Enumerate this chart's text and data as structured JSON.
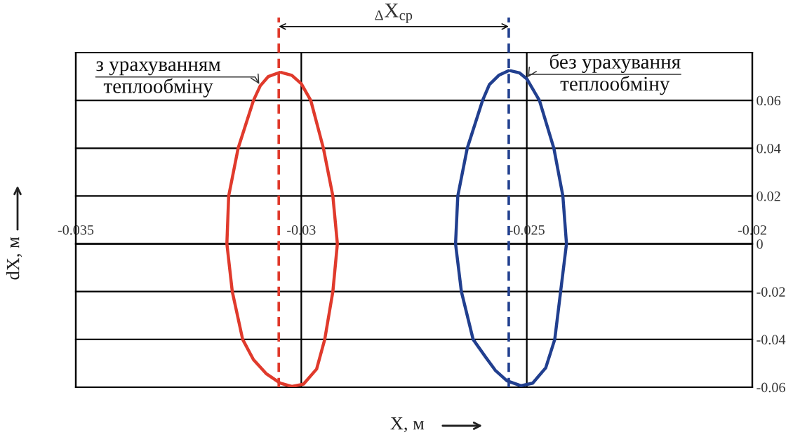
{
  "chart_data": {
    "type": "line",
    "xlabel": "X, м",
    "ylabel": "dX, м",
    "xlim": [
      -0.035,
      -0.02
    ],
    "xticks": [
      -0.035,
      -0.03,
      -0.025,
      -0.02
    ],
    "ylim": [
      -0.06,
      0.08
    ],
    "yticks": [
      -0.06,
      -0.04,
      -0.02,
      0,
      0.02,
      0.04,
      0.06
    ],
    "grid": true,
    "line_style": "solid",
    "series": [
      {
        "name": "з урахуванням\nтеплообміну",
        "color": "#e03a2c",
        "x": [
          -0.03044,
          -0.03021,
          -0.03,
          -0.02979,
          -0.02951,
          -0.0293,
          -0.0292,
          -0.0293,
          -0.02948,
          -0.02966,
          -0.02995,
          -0.03021,
          -0.03047,
          -0.03078,
          -0.03106,
          -0.0313,
          -0.03153,
          -0.03165,
          -0.03161,
          -0.0314,
          -0.03106,
          -0.03091,
          -0.03073,
          -0.03048
        ],
        "values": [
          0.0717,
          0.0705,
          0.067,
          0.06,
          0.04,
          0.02,
          0,
          -0.02,
          -0.04,
          -0.0524,
          -0.0587,
          -0.0597,
          -0.0583,
          -0.0543,
          -0.0485,
          -0.04,
          -0.02,
          0,
          0.02,
          0.04,
          0.06,
          0.0661,
          0.07,
          0.0717
        ]
      },
      {
        "name": "без урахування\nтеплообміну",
        "color": "#213f8f",
        "x": [
          -0.02536,
          -0.02516,
          -0.025,
          -0.02472,
          -0.0244,
          -0.0242,
          -0.02412,
          -0.02425,
          -0.02438,
          -0.02458,
          -0.02487,
          -0.02513,
          -0.02544,
          -0.0257,
          -0.02591,
          -0.02619,
          -0.02645,
          -0.02658,
          -0.02653,
          -0.02632,
          -0.02598,
          -0.02583,
          -0.02562,
          -0.02541
        ],
        "values": [
          0.0724,
          0.0715,
          0.069,
          0.06,
          0.04,
          0.02,
          0,
          -0.02,
          -0.04,
          -0.0519,
          -0.0583,
          -0.0594,
          -0.0573,
          -0.0529,
          -0.0475,
          -0.04,
          -0.02,
          0,
          0.02,
          0.04,
          0.06,
          0.0666,
          0.0705,
          0.0724
        ]
      }
    ],
    "ref_lines": [
      {
        "axis": "x",
        "value": -0.0305,
        "color": "#e03a2c",
        "line_style": "dashed"
      },
      {
        "axis": "x",
        "value": -0.0254,
        "color": "#213f8f",
        "line_style": "dashed"
      }
    ],
    "annotations": [
      "$_{Δ}$X$_{ср}$"
    ]
  }
}
